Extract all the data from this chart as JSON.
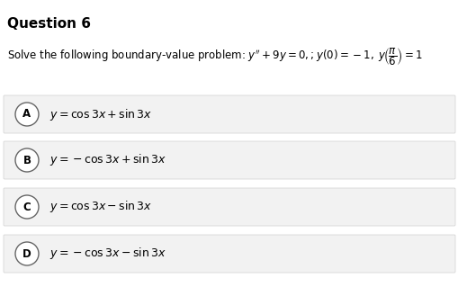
{
  "title": "Question 6",
  "background_color": "#ffffff",
  "option_bg": "#f2f2f2",
  "option_border": "#d0d0d0",
  "title_fontsize": 11,
  "problem_fontsize": 8.5,
  "option_fontsize": 9,
  "label_fontsize": 8.5,
  "options": [
    {
      "label": "A",
      "formula": "$y=\\cos 3x+\\sin 3x$"
    },
    {
      "label": "B",
      "formula": "$y=-\\cos 3x+\\sin 3x$"
    },
    {
      "label": "C",
      "formula": "$y=\\cos 3x-\\sin 3x$"
    },
    {
      "label": "D",
      "formula": "$y=-\\cos 3x-\\sin 3x$"
    }
  ]
}
